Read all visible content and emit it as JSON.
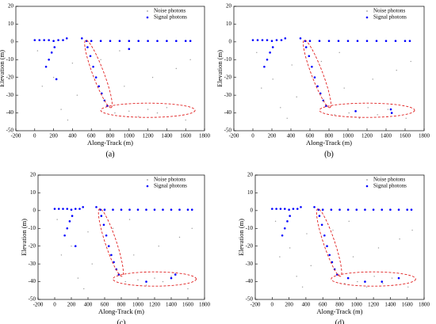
{
  "chart_data": [
    {
      "type": "scatter",
      "label": "(a)",
      "xlabel": "Along-Track (m)",
      "ylabel": "Elevation (m)",
      "xlim": [
        -200,
        1800
      ],
      "ylim": [
        -50,
        20
      ],
      "xticks": [
        -200,
        0,
        200,
        400,
        600,
        800,
        1000,
        1200,
        1400,
        1600,
        1800
      ],
      "yticks": [
        20,
        10,
        0,
        -10,
        -20,
        -30,
        -40,
        -50
      ],
      "series": [
        {
          "name": "Noise photons",
          "color": "#9a9a9a",
          "x": [
            30,
            80,
            200,
            280,
            400,
            450,
            700,
            850,
            900,
            1000,
            1100,
            1200,
            1300,
            1400,
            1500,
            1600,
            1650,
            950,
            1250,
            350
          ],
          "values": [
            -5,
            -25,
            -20,
            -38,
            -12,
            -30,
            -10,
            -40,
            -5,
            -39,
            -42,
            -38,
            -40,
            -37,
            -15,
            -44,
            -10,
            -25,
            -20,
            -44
          ]
        },
        {
          "name": "Signal photons",
          "color": "#0000ff",
          "x": [
            0,
            50,
            100,
            150,
            200,
            250,
            300,
            340,
            120,
            150,
            180,
            210,
            500,
            550,
            600,
            700,
            800,
            900,
            1000,
            1100,
            1200,
            1300,
            1400,
            1500,
            1600,
            1650,
            560,
            590,
            620,
            650,
            680,
            710,
            740,
            770,
            230,
            1000
          ],
          "values": [
            1,
            1,
            1,
            1,
            0.5,
            1,
            1,
            2,
            -14,
            -10,
            -6,
            -3,
            2,
            0.5,
            0.5,
            0.5,
            0.5,
            0.5,
            0.5,
            0.5,
            0.5,
            0.5,
            0.5,
            0.5,
            0.5,
            0.5,
            -3,
            -8,
            -14,
            -20,
            -25,
            -29,
            -33,
            -36,
            -21,
            -4
          ]
        }
      ]
    },
    {
      "type": "scatter",
      "label": "(b)",
      "xlabel": "Along-Track (m)",
      "ylabel": "Elevation (m)",
      "xlim": [
        -200,
        1800
      ],
      "ylim": [
        -50,
        20
      ],
      "xticks": [
        -200,
        0,
        200,
        400,
        600,
        800,
        1000,
        1200,
        1400,
        1600,
        1800
      ],
      "yticks": [
        20,
        10,
        0,
        -10,
        -20,
        -30,
        -40,
        -50
      ],
      "series": [
        {
          "name": "Noise photons",
          "color": "#9a9a9a",
          "x": [
            40,
            90,
            210,
            290,
            410,
            460,
            720,
            860,
            910,
            1010,
            1120,
            1210,
            1310,
            1420,
            1510,
            1610,
            1660,
            960,
            1260,
            360
          ],
          "values": [
            -6,
            -26,
            -21,
            -37,
            -13,
            -31,
            -11,
            -41,
            -6,
            -40,
            -43,
            -37,
            -41,
            -38,
            -16,
            -43,
            -11,
            -26,
            -21,
            -43
          ]
        },
        {
          "name": "Signal photons",
          "color": "#0000ff",
          "x": [
            0,
            50,
            100,
            150,
            200,
            250,
            300,
            340,
            120,
            150,
            180,
            210,
            500,
            550,
            600,
            700,
            800,
            900,
            1000,
            1100,
            1200,
            1300,
            1400,
            1500,
            1600,
            1650,
            560,
            590,
            620,
            650,
            680,
            710,
            740,
            770,
            1080,
            1450,
            1460
          ],
          "values": [
            1,
            1,
            1,
            1,
            0.5,
            1,
            1,
            2,
            -14,
            -10,
            -6,
            -3,
            2,
            0.5,
            0.5,
            0.5,
            0.5,
            0.5,
            0.5,
            0.5,
            0.5,
            0.5,
            0.5,
            0.5,
            0.5,
            0.5,
            -3,
            -8,
            -14,
            -20,
            -25,
            -29,
            -33,
            -36,
            -39,
            -38,
            -40
          ]
        }
      ]
    },
    {
      "type": "scatter",
      "label": "(c)",
      "xlabel": "Along-Track (m)",
      "ylabel": "Elevation (m)",
      "xlim": [
        -200,
        1800
      ],
      "ylim": [
        -50,
        20
      ],
      "xticks": [
        -200,
        0,
        200,
        400,
        600,
        800,
        1000,
        1200,
        1400,
        1600,
        1800
      ],
      "yticks": [
        20,
        10,
        0,
        -10,
        -20,
        -30,
        -40,
        -50
      ],
      "series": [
        {
          "name": "Noise photons",
          "color": "#9a9a9a",
          "x": [
            30,
            80,
            200,
            280,
            400,
            450,
            700,
            850,
            900,
            1000,
            1100,
            1200,
            1300,
            1400,
            1500,
            1600,
            1650,
            950,
            1250,
            350
          ],
          "values": [
            -5,
            -25,
            -20,
            -38,
            -12,
            -30,
            -10,
            -40,
            -5,
            -39,
            -42,
            -38,
            -40,
            -37,
            -15,
            -44,
            -10,
            -25,
            -20,
            -44
          ]
        },
        {
          "name": "Signal photons",
          "color": "#0000ff",
          "x": [
            0,
            50,
            100,
            150,
            200,
            250,
            300,
            340,
            120,
            150,
            180,
            210,
            500,
            550,
            600,
            700,
            800,
            900,
            1000,
            1100,
            1200,
            1300,
            1400,
            1500,
            1600,
            1650,
            560,
            590,
            620,
            650,
            680,
            710,
            740,
            770,
            1100,
            1400,
            1450,
            250
          ],
          "values": [
            1,
            1,
            1,
            1,
            0.5,
            1,
            1,
            2,
            -14,
            -10,
            -6,
            -3,
            2,
            0.5,
            0.5,
            0.5,
            0.5,
            0.5,
            0.5,
            0.5,
            0.5,
            0.5,
            0.5,
            0.5,
            0.5,
            0.5,
            -3,
            -8,
            -14,
            -20,
            -25,
            -29,
            -33,
            -36,
            -40,
            -38,
            -36,
            -20
          ]
        }
      ]
    },
    {
      "type": "scatter",
      "label": "(d)",
      "xlabel": "Along-Track (m)",
      "ylabel": "Elevation (m)",
      "xlim": [
        -200,
        1800
      ],
      "ylim": [
        -50,
        20
      ],
      "xticks": [
        -200,
        0,
        200,
        400,
        600,
        800,
        1000,
        1200,
        1400,
        1600,
        1800
      ],
      "yticks": [
        20,
        10,
        0,
        -10,
        -20,
        -30,
        -40,
        -50
      ],
      "series": [
        {
          "name": "Noise photons",
          "color": "#9a9a9a",
          "x": [
            40,
            90,
            210,
            290,
            410,
            460,
            720,
            860,
            910,
            1010,
            1120,
            1210,
            1310,
            1420,
            1510,
            1610,
            1660,
            960,
            1260,
            360
          ],
          "values": [
            -6,
            -26,
            -21,
            -37,
            -13,
            -31,
            -11,
            -41,
            -6,
            -40,
            -43,
            -37,
            -41,
            -38,
            -16,
            -43,
            -11,
            -26,
            -21,
            -43
          ]
        },
        {
          "name": "Signal photons",
          "color": "#0000ff",
          "x": [
            0,
            50,
            100,
            150,
            200,
            250,
            300,
            340,
            120,
            150,
            180,
            210,
            500,
            550,
            600,
            700,
            800,
            900,
            1000,
            1100,
            1200,
            1300,
            1400,
            1500,
            1600,
            1650,
            560,
            590,
            620,
            650,
            680,
            710,
            740,
            770,
            900,
            1100,
            1300,
            1500
          ],
          "values": [
            1,
            1,
            1,
            1,
            0.5,
            1,
            1,
            2,
            -14,
            -10,
            -6,
            -3,
            2,
            0.5,
            0.5,
            0.5,
            0.5,
            0.5,
            0.5,
            0.5,
            0.5,
            0.5,
            0.5,
            0.5,
            0.5,
            0.5,
            -3,
            -8,
            -14,
            -20,
            -25,
            -29,
            -33,
            -36,
            -38,
            -40,
            -40,
            -38
          ]
        }
      ]
    }
  ]
}
